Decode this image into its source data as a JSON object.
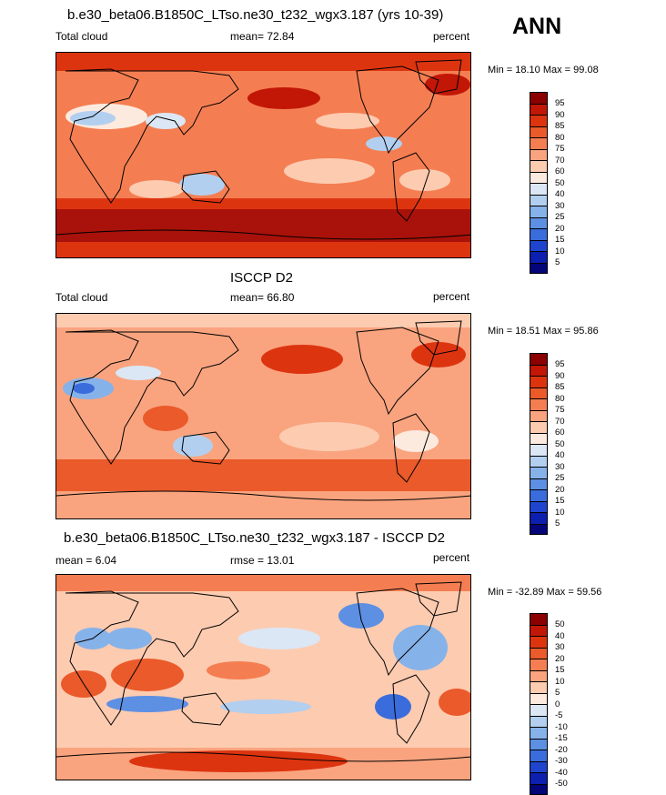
{
  "season": "ANN",
  "panels": [
    {
      "title": "b.e30_beta06.B1850C_LTso.ne30_t232_wgx3.187 (yrs 10-39)",
      "left_label": "Total cloud",
      "center_label": "mean=  72.84",
      "right_label": "percent",
      "minmax": "Min =  18.10 Max =  99.08",
      "colorbar_levels": [
        "95",
        "90",
        "85",
        "80",
        "75",
        "70",
        "60",
        "50",
        "40",
        "30",
        "25",
        "20",
        "15",
        "10",
        "5"
      ],
      "colorbar_colors": [
        "#8b0000",
        "#c21706",
        "#dd3410",
        "#ea5a2a",
        "#f47e52",
        "#f9a47f",
        "#fdcbb0",
        "#fdeade",
        "#dbe7f5",
        "#b2cff0",
        "#86b2ea",
        "#5d90e3",
        "#3a6cdc",
        "#1f45cf",
        "#0d1fae",
        "#040578"
      ]
    },
    {
      "title": "ISCCP D2",
      "left_label": "Total cloud",
      "center_label": "mean=  66.80",
      "right_label": "percent",
      "minmax": "Min =  18.51 Max =  95.86",
      "colorbar_levels": [
        "95",
        "90",
        "85",
        "80",
        "75",
        "70",
        "60",
        "50",
        "40",
        "30",
        "25",
        "20",
        "15",
        "10",
        "5"
      ],
      "colorbar_colors": [
        "#8b0000",
        "#c21706",
        "#dd3410",
        "#ea5a2a",
        "#f47e52",
        "#f9a47f",
        "#fdcbb0",
        "#fdeade",
        "#dbe7f5",
        "#b2cff0",
        "#86b2ea",
        "#5d90e3",
        "#3a6cdc",
        "#1f45cf",
        "#0d1fae",
        "#040578"
      ]
    },
    {
      "title": "b.e30_beta06.B1850C_LTso.ne30_t232_wgx3.187 - ISCCP D2",
      "left_label": "mean =   6.04",
      "center_label": "rmse =  13.01",
      "right_label": "percent",
      "minmax": "Min = -32.89 Max =  59.56",
      "colorbar_levels": [
        "50",
        "40",
        "30",
        "20",
        "15",
        "10",
        "5",
        "0",
        "-5",
        "-10",
        "-15",
        "-20",
        "-30",
        "-40",
        "-50"
      ],
      "colorbar_colors": [
        "#8b0000",
        "#c21706",
        "#dd3410",
        "#ea5a2a",
        "#f47e52",
        "#f9a47f",
        "#fdcbb0",
        "#fdeade",
        "#dbe7f5",
        "#b2cff0",
        "#86b2ea",
        "#5d90e3",
        "#3a6cdc",
        "#1f45cf",
        "#0d1fae",
        "#040578"
      ]
    }
  ]
}
